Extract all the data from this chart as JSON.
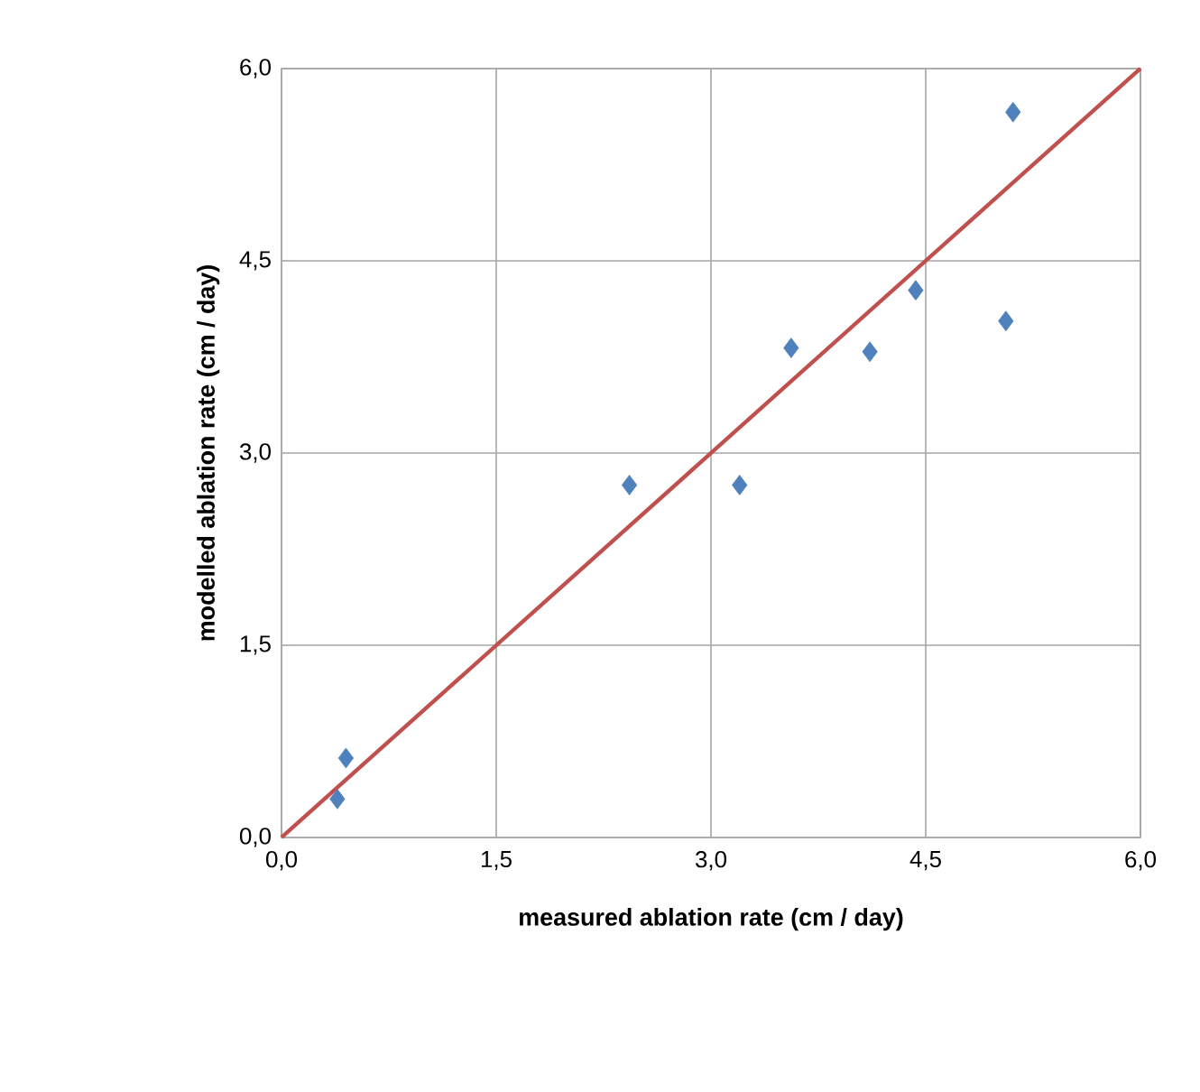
{
  "chart_data": {
    "type": "scatter",
    "xlabel": "measured ablation rate (cm / day)",
    "ylabel": "modelled ablation rate (cm / day)",
    "xlim": [
      0,
      6
    ],
    "ylim": [
      0,
      6
    ],
    "xticks": [
      {
        "value": 0,
        "label": "0,0"
      },
      {
        "value": 1.5,
        "label": "1,5"
      },
      {
        "value": 3,
        "label": "3,0"
      },
      {
        "value": 4.5,
        "label": "4,5"
      },
      {
        "value": 6,
        "label": "6,0"
      }
    ],
    "yticks": [
      {
        "value": 0,
        "label": "0,0"
      },
      {
        "value": 1.5,
        "label": "1,5"
      },
      {
        "value": 3,
        "label": "3,0"
      },
      {
        "value": 4.5,
        "label": "4,5"
      },
      {
        "value": 6,
        "label": "6,0"
      }
    ],
    "grid": true,
    "series": [
      {
        "color": "#4f81bd",
        "marker": "diamond",
        "x": [
          0.39,
          0.45,
          2.43,
          3.2,
          3.56,
          4.11,
          4.43,
          5.06,
          5.11
        ],
        "values": [
          0.3,
          0.62,
          2.75,
          2.75,
          3.82,
          3.79,
          4.27,
          4.03,
          5.66
        ]
      },
      {
        "type": "line",
        "color": "#c0504d",
        "line_style": "solid",
        "x": [
          0,
          6
        ],
        "values": [
          0,
          6
        ]
      }
    ]
  }
}
